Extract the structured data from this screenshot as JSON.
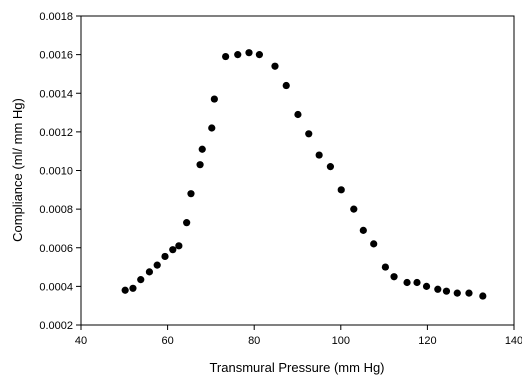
{
  "chart_data": {
    "type": "scatter",
    "title": "",
    "xlabel": "Transmural Pressure (mm Hg)",
    "ylabel": "Compliance (ml/ mm Hg)",
    "xlim": [
      40,
      140
    ],
    "ylim": [
      0.0002,
      0.0018
    ],
    "x_ticks": [
      40,
      60,
      80,
      100,
      120,
      140
    ],
    "y_ticks": [
      0.0002,
      0.0004,
      0.0006,
      0.0008,
      0.001,
      0.0012,
      0.0014,
      0.0016,
      0.0018
    ],
    "x_tick_labels": [
      "40",
      "60",
      "80",
      "100",
      "120",
      "140"
    ],
    "y_tick_labels": [
      "0.0002",
      "0.0004",
      "0.0006",
      "0.0008",
      "0.0010",
      "0.0012",
      "0.0014",
      "0.0016",
      "0.0018"
    ],
    "grid": false,
    "legend": "none",
    "marker_color": "#000000",
    "series": [
      {
        "x": [
          50.2,
          52.0,
          53.8,
          55.8,
          57.6,
          59.4,
          61.2,
          62.6,
          64.4,
          65.4,
          67.5,
          68.0,
          70.2,
          70.8,
          73.4,
          76.2,
          78.8,
          81.2,
          84.8,
          87.4,
          90.1,
          92.6,
          95.0,
          97.6,
          100.1,
          103.0,
          105.2,
          107.6,
          110.3,
          112.3,
          115.3,
          117.6,
          119.8,
          122.4,
          124.4,
          126.9,
          129.6,
          132.8
        ],
        "y": [
          0.00038,
          0.00039,
          0.000435,
          0.000475,
          0.00051,
          0.000555,
          0.00059,
          0.00061,
          0.00073,
          0.00088,
          0.00103,
          0.00111,
          0.00122,
          0.00137,
          0.00159,
          0.0016,
          0.00161,
          0.0016,
          0.00154,
          0.00144,
          0.00129,
          0.00119,
          0.00108,
          0.00102,
          0.0009,
          0.0008,
          0.00069,
          0.00062,
          0.0005,
          0.00045,
          0.00042,
          0.00042,
          0.0004,
          0.000385,
          0.000375,
          0.000365,
          0.000365,
          0.00035
        ]
      }
    ]
  }
}
